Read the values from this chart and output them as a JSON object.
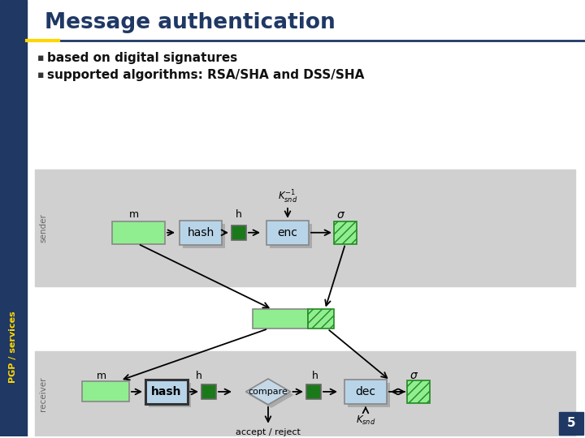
{
  "title": "Message authentication",
  "bullet1": "based on digital signatures",
  "bullet2": "supported algorithms: RSA/SHA and DSS/SHA",
  "bg_color": "#ffffff",
  "title_color": "#1f3864",
  "left_bar_color": "#1f3864",
  "left_stripe_color": "#ffd700",
  "pgp_text_color": "#ffd700",
  "slide_number": "5",
  "light_green": "#90ee90",
  "dark_green": "#1a7a1a",
  "light_blue_box": "#b8d4e8",
  "gray_bg": "#d0d0d0",
  "sender_label_color": "#666666",
  "receiver_label_color": "#666666"
}
